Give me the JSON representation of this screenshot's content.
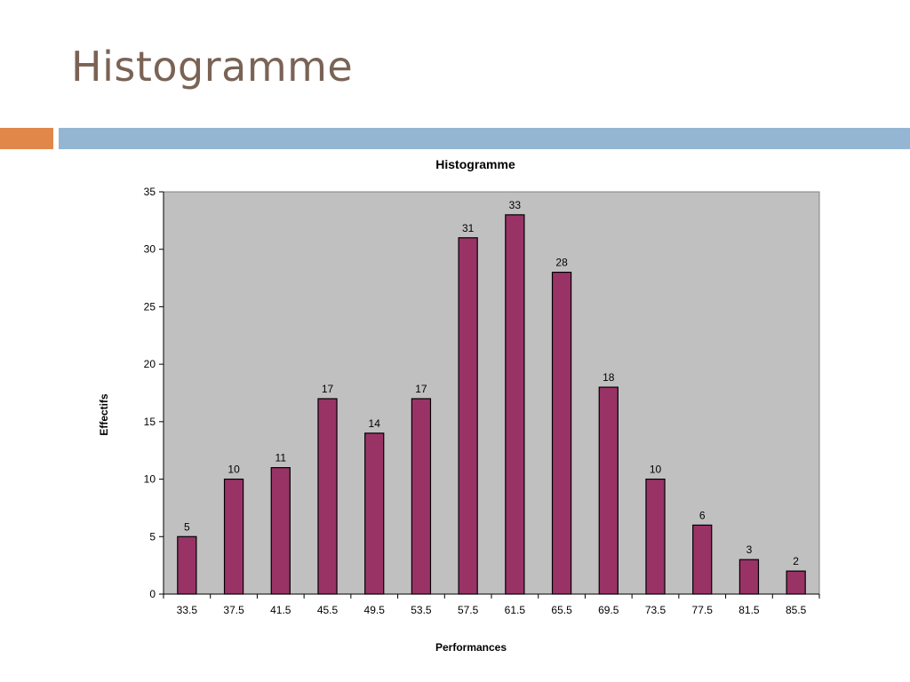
{
  "slide": {
    "title": "Histogramme"
  },
  "colors": {
    "title": "#7a6355",
    "accent_orange": "#e0874a",
    "accent_blue": "#94b6d2",
    "plot_background": "#c0c0c0",
    "bar_fill": "#993366"
  },
  "chart_data": {
    "type": "bar",
    "title": "Histogramme",
    "xlabel": "Performances",
    "ylabel": "Effectifs",
    "categories": [
      "33.5",
      "37.5",
      "41.5",
      "45.5",
      "49.5",
      "53.5",
      "57.5",
      "61.5",
      "65.5",
      "69.5",
      "73.5",
      "77.5",
      "81.5",
      "85.5"
    ],
    "values": [
      5,
      10,
      11,
      17,
      14,
      17,
      31,
      33,
      28,
      18,
      10,
      6,
      3,
      2
    ],
    "ylim": [
      0,
      35
    ],
    "yticks": [
      0,
      5,
      10,
      15,
      20,
      25,
      30,
      35
    ],
    "data_labels": true,
    "grid": false,
    "legend": "none"
  }
}
